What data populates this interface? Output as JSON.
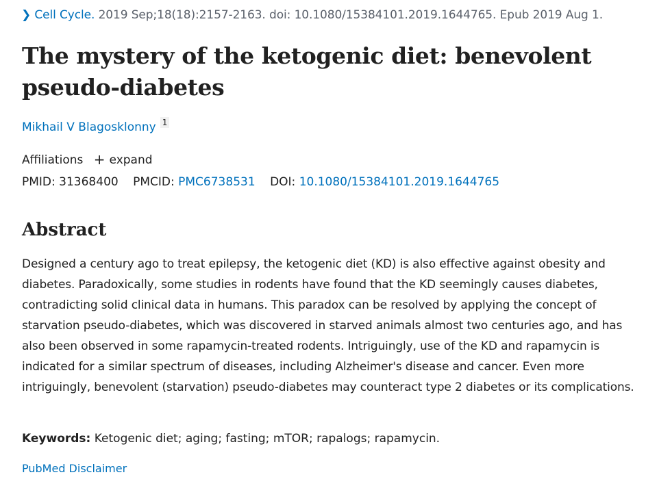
{
  "citation": {
    "chevron_icon": "chevron-right-icon",
    "journal": "Cell Cycle.",
    "details": "2019 Sep;18(18):2157-2163. doi: 10.1080/15384101.2019.1644765. Epub 2019 Aug 1."
  },
  "article": {
    "title": "The mystery of the ketogenic diet: benevolent pseudo-diabetes"
  },
  "authors": [
    {
      "name": "Mikhail V Blagosklonny",
      "affiliation_ref": "1"
    }
  ],
  "affiliations": {
    "label": "Affiliations",
    "expand_label": "expand",
    "expand_icon": "plus-icon"
  },
  "identifiers": {
    "pmid_label": "PMID:",
    "pmid": "31368400",
    "pmcid_label": "PMCID:",
    "pmcid": "PMC6738531",
    "doi_label": "DOI:",
    "doi": "10.1080/15384101.2019.1644765"
  },
  "abstract": {
    "heading": "Abstract",
    "text": "Designed a century ago to treat epilepsy, the ketogenic diet (KD) is also effective against obesity and diabetes. Paradoxically, some studies in rodents have found that the KD seemingly causes diabetes, contradicting solid clinical data in humans. This paradox can be resolved by applying the concept of starvation pseudo-diabetes, which was discovered in starved animals almost two centuries ago, and has also been observed in some rapamycin-treated rodents. Intriguingly, use of the KD and rapamycin is indicated for a similar spectrum of diseases, including Alzheimer's disease and cancer. Even more intriguingly, benevolent (starvation) pseudo-diabetes may counteract type 2 diabetes or its complications."
  },
  "keywords": {
    "label": "Keywords:",
    "text": "Ketogenic diet; aging; fasting; mTOR; rapalogs; rapamycin."
  },
  "footer": {
    "disclaimer": "PubMed Disclaimer"
  },
  "colors": {
    "link": "#0071bc",
    "text": "#212121",
    "muted": "#5b616b"
  }
}
